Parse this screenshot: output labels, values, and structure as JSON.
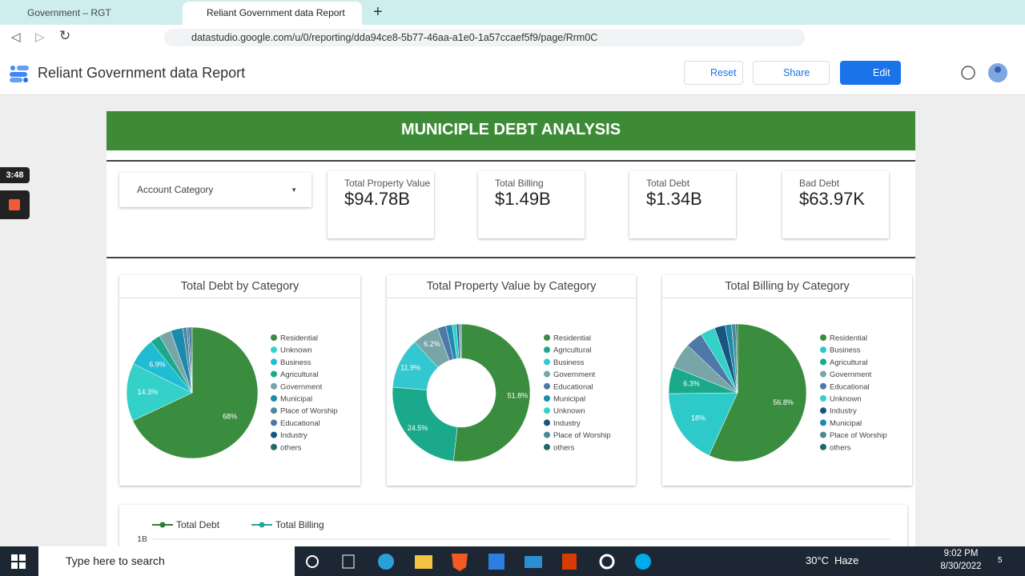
{
  "browser": {
    "tabs": [
      "Government – RGT",
      "Reliant Government data Report"
    ],
    "url": "datastudio.google.com/u/0/reporting/dda94ce8-5b77-46aa-a1e0-1a57ccaef5f9/page/Rrm0C"
  },
  "app": {
    "title": "Reliant Government data Report",
    "buttons": [
      "Reset",
      "Share",
      "Edit"
    ]
  },
  "recording": {
    "timer": "3:48"
  },
  "report": {
    "title": "MUNICIPLE DEBT ANALYSIS",
    "filter": "Account Category",
    "kpis": [
      {
        "label": "Total Property Value",
        "value": "$94.78B"
      },
      {
        "label": "Total Billing",
        "value": "$1.49B"
      },
      {
        "label": "Total Debt",
        "value": "$1.34B"
      },
      {
        "label": "Bad Debt",
        "value": "$63.97K"
      }
    ]
  },
  "chart_data": [
    {
      "type": "pie",
      "title": "Total Debt by Category",
      "categories": [
        "Residential",
        "Unknown",
        "Business",
        "Agricultural",
        "Government",
        "Municipal",
        "Place of Worship",
        "Educational",
        "Industry",
        "others"
      ],
      "values": [
        68,
        14.3,
        6.9,
        2.5,
        3,
        3,
        1,
        0.5,
        0.5,
        0.3
      ],
      "value_labels": [
        "68%",
        "14.3%",
        "6.9%",
        null,
        null,
        null,
        null,
        null,
        null,
        null
      ],
      "colors": [
        "#3a8d3f",
        "#33d1c8",
        "#1fbcd2",
        "#1aa98a",
        "#78a6a8",
        "#1b8aae",
        "#4a8a96",
        "#4e78a8",
        "#17567f",
        "#23676a"
      ]
    },
    {
      "type": "donut",
      "title": "Total Property Value by Category",
      "categories": [
        "Residential",
        "Agricultural",
        "Business",
        "Government",
        "Educational",
        "Municipal",
        "Unknown",
        "Industry",
        "Place of Worship",
        "others"
      ],
      "values": [
        51.8,
        24.5,
        11.9,
        6.2,
        2,
        1.5,
        1,
        0.5,
        0.4,
        0.2
      ],
      "value_labels": [
        "51.8%",
        "24.5%",
        "11.9%",
        "6.2%",
        null,
        null,
        null,
        null,
        null,
        null
      ],
      "colors": [
        "#3a8d3f",
        "#1aa98a",
        "#33c7cf",
        "#78a6a8",
        "#4e78a8",
        "#1b8aae",
        "#33d1c8",
        "#17567f",
        "#4a8a96",
        "#23676a"
      ]
    },
    {
      "type": "pie",
      "title": "Total Billing by Category",
      "categories": [
        "Residential",
        "Business",
        "Agricultural",
        "Government",
        "Educational",
        "Unknown",
        "Industry",
        "Municipal",
        "Place of Worship",
        "others"
      ],
      "values": [
        56.8,
        18,
        6.3,
        6,
        4,
        3.5,
        2.5,
        1.5,
        1,
        0.4
      ],
      "value_labels": [
        "56.8%",
        "18%",
        "6.3%",
        null,
        null,
        null,
        null,
        null,
        null,
        null
      ],
      "colors": [
        "#3a8d3f",
        "#2ec9c9",
        "#1aa98a",
        "#78a6a8",
        "#4e78a8",
        "#33d1c8",
        "#17567f",
        "#1b8aae",
        "#4a8a96",
        "#23676a"
      ]
    },
    {
      "type": "line",
      "series": [
        {
          "name": "Total Debt",
          "color": "#2e7d32"
        },
        {
          "name": "Total Billing",
          "color": "#26a69a"
        }
      ],
      "yticks": [
        {
          "value": 1000000000,
          "label": "1B"
        }
      ]
    }
  ],
  "taskbar": {
    "search": "Type here to search",
    "weather": "30°C",
    "condition": "Haze",
    "time": "9:02 PM",
    "date": "8/30/2022",
    "notifications": "5"
  }
}
